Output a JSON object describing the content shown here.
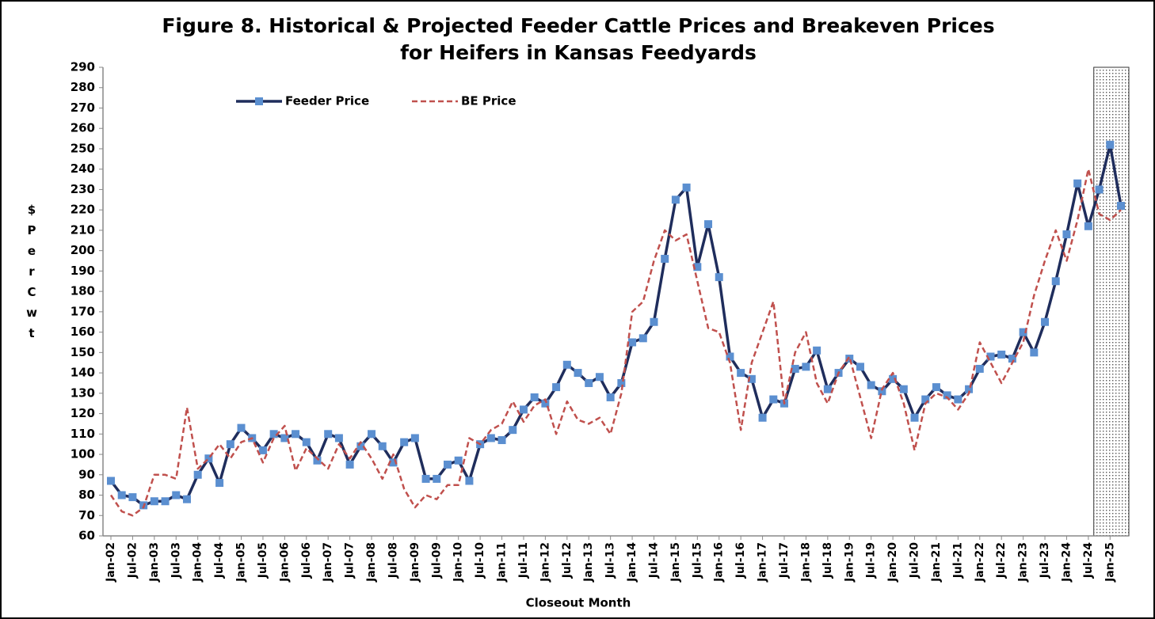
{
  "chart_data": {
    "type": "line",
    "title": "Figure 8.  Historical & Projected Feeder Cattle Prices and Breakeven Prices for Heifers in Kansas Feedyards",
    "y_label": "$ Per Cwt",
    "x_label": "Closeout Month",
    "categories": [
      "Jan-02",
      null,
      "Jul-02",
      null,
      "Jan-03",
      null,
      "Jul-03",
      null,
      "Jan-04",
      null,
      "Jul-04",
      null,
      "Jan-05",
      null,
      "Jul-05",
      null,
      "Jan-06",
      null,
      "Jul-06",
      null,
      "Jan-07",
      null,
      "Jul-07",
      null,
      "Jan-08",
      null,
      "Jul-08",
      null,
      "Jan-09",
      null,
      "Jul-09",
      null,
      "Jan-10",
      null,
      "Jul-10",
      null,
      "Jan-11",
      null,
      "Jul-11",
      null,
      "Jan-12",
      null,
      "Jul-12",
      null,
      "Jan-13",
      null,
      "Jul-13",
      null,
      "Jan-14",
      null,
      "Jul-14",
      null,
      "Jan-15",
      null,
      "Jul-15",
      null,
      "Jan-16",
      null,
      "Jul-16",
      null,
      "Jan-17",
      null,
      "Jul-17",
      null,
      "Jan-18",
      null,
      "Jul-18",
      null,
      "Jan-19",
      null,
      "Jul-19",
      null,
      "Jan-20",
      null,
      "Jul-20",
      null,
      "Jan-21",
      null,
      "Jul-21",
      null,
      "Jan-22",
      null,
      "Jul-22",
      null,
      "Jan-23",
      null,
      "Jul-23",
      null,
      "Jan-24",
      null,
      "Jul-24",
      null,
      "Jan-25",
      null
    ],
    "series": [
      {
        "name": "Feeder Price",
        "color": "#1f2d5c",
        "marker_color": "#5b8fd0",
        "style": "solid",
        "values": [
          87,
          80,
          79,
          75,
          77,
          77,
          80,
          78,
          90,
          98,
          86,
          105,
          113,
          108,
          102,
          110,
          108,
          110,
          106,
          97,
          110,
          108,
          95,
          104,
          110,
          104,
          96,
          106,
          108,
          88,
          88,
          95,
          97,
          87,
          105,
          108,
          107,
          112,
          122,
          128,
          125,
          133,
          144,
          140,
          135,
          138,
          128,
          135,
          155,
          157,
          165,
          196,
          225,
          231,
          192,
          213,
          187,
          148,
          140,
          137,
          118,
          127,
          125,
          142,
          143,
          151,
          132,
          140,
          147,
          143,
          134,
          131,
          137,
          132,
          118,
          127,
          133,
          129,
          127,
          132,
          142,
          148,
          149,
          147,
          160,
          150,
          165,
          185,
          208,
          233,
          212,
          230,
          252,
          222
        ]
      },
      {
        "name": "BE Price",
        "color": "#c0504d",
        "style": "dashed",
        "values": [
          80,
          72,
          70,
          74,
          90,
          90,
          88,
          123,
          93,
          98,
          105,
          98,
          106,
          108,
          96,
          108,
          114,
          92,
          103,
          98,
          93,
          105,
          98,
          106,
          98,
          88,
          100,
          83,
          74,
          80,
          78,
          85,
          85,
          108,
          105,
          112,
          115,
          126,
          116,
          124,
          127,
          110,
          126,
          117,
          115,
          118,
          110,
          130,
          170,
          175,
          195,
          210,
          205,
          208,
          185,
          162,
          160,
          145,
          112,
          145,
          160,
          175,
          125,
          150,
          160,
          135,
          125,
          140,
          148,
          128,
          108,
          132,
          140,
          125,
          102,
          125,
          130,
          128,
          122,
          130,
          155,
          145,
          135,
          145,
          155,
          178,
          195,
          210,
          195,
          215,
          240,
          218,
          215,
          220
        ]
      }
    ],
    "ylim": [
      60,
      290
    ],
    "yticks": [
      60,
      70,
      80,
      90,
      100,
      110,
      120,
      130,
      140,
      150,
      160,
      170,
      180,
      190,
      200,
      210,
      220,
      230,
      240,
      250,
      260,
      270,
      280,
      290
    ],
    "grid": false,
    "legend": "upper left"
  }
}
